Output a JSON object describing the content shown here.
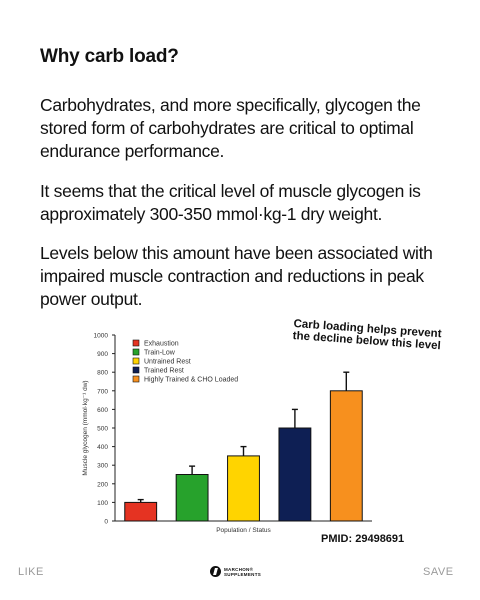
{
  "heading": "Why carb load?",
  "paragraphs": [
    "Carbohydrates, and more specifically, glycogen the stored form of carbohydrates are critical to optimal endurance performance.",
    "It seems that the critical level of muscle glycogen is approximately 300-350 mmol·kg-1 dry weight.",
    "Levels below this amount have been associated with impaired muscle contraction and reductions in peak power output."
  ],
  "annotation": {
    "line1": "Carb loading helps prevent",
    "line2": "the decline below this level"
  },
  "citation": "PMID: 29498691",
  "footer": {
    "like": "LIKE",
    "save": "SAVE",
    "brand_line1": "MARCHON®",
    "brand_line2": "SUPPLEMENTS"
  },
  "icons": {
    "brand": "brand-logo-icon"
  },
  "chart_data": {
    "type": "bar",
    "categories": [
      "Exhaustion",
      "Train-Low",
      "Untrained Rest",
      "Trained Rest",
      "Highly Trained & CHO Loaded"
    ],
    "values": [
      100,
      250,
      350,
      500,
      700
    ],
    "errors": [
      15,
      45,
      50,
      100,
      100
    ],
    "colors": [
      "#e53322",
      "#27a22c",
      "#ffd400",
      "#0e1f54",
      "#f7901e"
    ],
    "xlabel": "Population / Status",
    "ylabel": "Muscle glycogen (mmol·kg⁻¹ dw)",
    "ylim": [
      0,
      1000
    ],
    "yticks": [
      0,
      100,
      200,
      300,
      400,
      500,
      600,
      700,
      800,
      900,
      1000
    ],
    "legend_position": "top-left",
    "grid": false
  }
}
